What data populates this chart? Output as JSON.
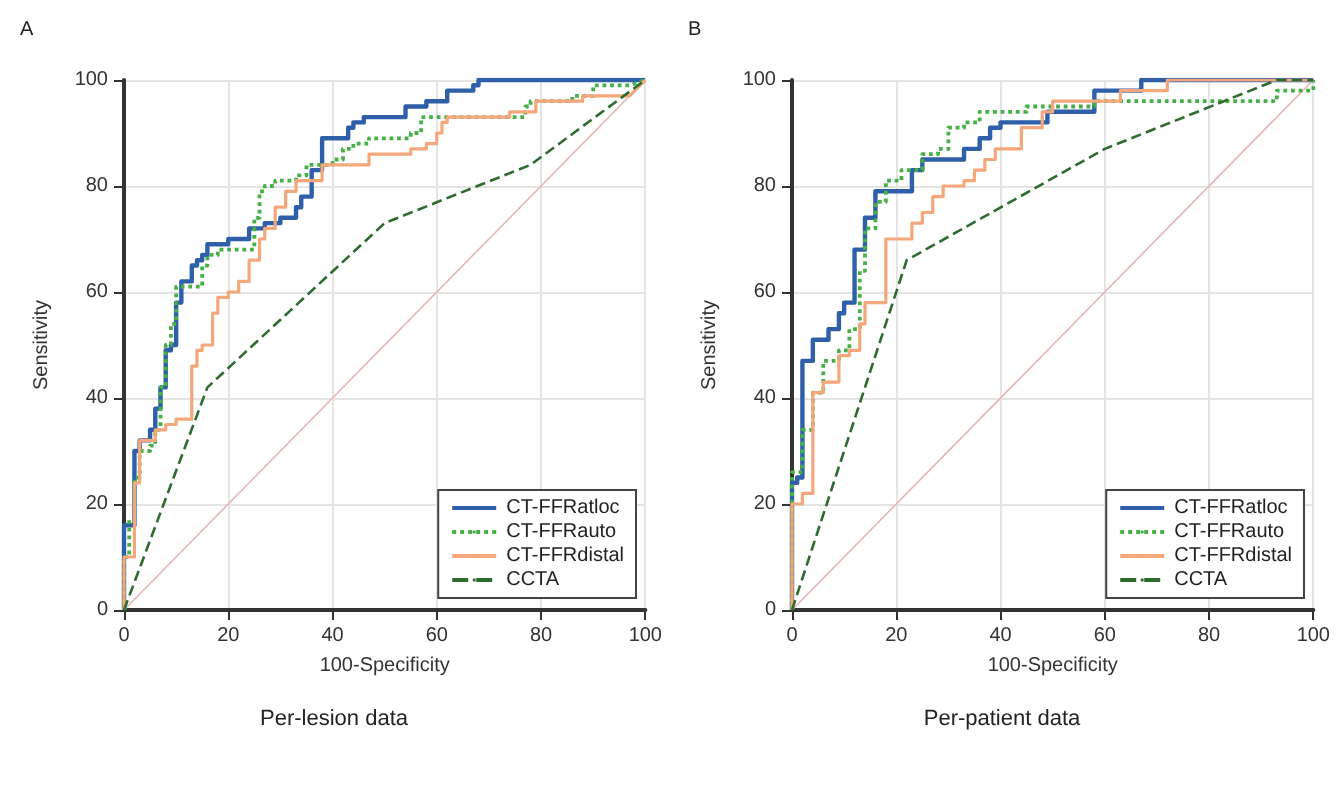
{
  "chart_data": [
    {
      "type": "line",
      "title": "A",
      "xlabel": "100-Specificity",
      "ylabel": "Sensitivity",
      "annotations": [
        "Per-lesion data"
      ],
      "xlim": [
        0,
        100
      ],
      "ylim": [
        0,
        100
      ],
      "xticks": [
        0,
        20,
        40,
        60,
        80,
        100
      ],
      "yticks": [
        0,
        20,
        40,
        60,
        80,
        100
      ],
      "grid": true,
      "legend": "bottom right",
      "marker": "none",
      "series": [
        {
          "name": "CT-FFRatloc",
          "color": "#2e5fa8",
          "line_style": "solid",
          "x": [
            0,
            0,
            2,
            2,
            3,
            3,
            5,
            5,
            6,
            6,
            7,
            7,
            8,
            8,
            9,
            9,
            10,
            10,
            11,
            11,
            13,
            13,
            14,
            14,
            15,
            15,
            16,
            16,
            20,
            20,
            24,
            24,
            27,
            27,
            30,
            30,
            33,
            33,
            34,
            34,
            36,
            36,
            38,
            38,
            43,
            43,
            44,
            44,
            46,
            46,
            54,
            54,
            58,
            58,
            62,
            62,
            67,
            67,
            68,
            68,
            100
          ],
          "values": [
            0,
            16,
            16,
            30,
            30,
            32,
            32,
            34,
            34,
            38,
            38,
            42,
            42,
            49,
            49,
            50,
            50,
            58,
            58,
            62,
            62,
            65,
            65,
            66,
            66,
            67,
            67,
            69,
            69,
            70,
            70,
            72,
            72,
            73,
            73,
            74,
            74,
            76,
            76,
            78,
            78,
            83,
            83,
            89,
            89,
            91,
            91,
            92,
            92,
            93,
            93,
            95,
            95,
            96,
            96,
            98,
            98,
            99,
            99,
            100,
            100
          ]
        },
        {
          "name": "CT-FFRauto",
          "color": "#45b045",
          "line_style": "dotted",
          "x": [
            0,
            0,
            1,
            1,
            2,
            2,
            3,
            3,
            5,
            5,
            6,
            6,
            7,
            7,
            8,
            8,
            9,
            9,
            10,
            10,
            15,
            15,
            16,
            16,
            18,
            18,
            25,
            25,
            26,
            26,
            27,
            27,
            29,
            29,
            33,
            33,
            35,
            35,
            40,
            40,
            42,
            42,
            44,
            44,
            47,
            47,
            55,
            55,
            57,
            57,
            77,
            77,
            78,
            78,
            86,
            86,
            90,
            90,
            97,
            100
          ],
          "values": [
            0,
            10,
            10,
            17,
            17,
            25,
            25,
            30,
            30,
            31,
            31,
            34,
            34,
            42,
            42,
            50,
            50,
            54,
            54,
            61,
            61,
            65,
            65,
            67,
            67,
            68,
            68,
            74,
            74,
            79,
            79,
            80,
            80,
            81,
            81,
            82,
            82,
            84,
            84,
            85,
            85,
            87,
            87,
            88,
            88,
            89,
            89,
            90,
            90,
            93,
            93,
            95,
            95,
            96,
            96,
            97,
            97,
            99,
            99,
            100
          ]
        },
        {
          "name": "CT-FFRdistal",
          "color": "#f4a77a",
          "line_style": "solid",
          "x": [
            0,
            0,
            2,
            2,
            3,
            3,
            6,
            6,
            8,
            8,
            10,
            10,
            13,
            13,
            14,
            14,
            15,
            15,
            17,
            17,
            18,
            18,
            20,
            20,
            22,
            22,
            24,
            24,
            26,
            26,
            27,
            27,
            29,
            29,
            31,
            31,
            33,
            33,
            38,
            38,
            47,
            47,
            55,
            55,
            58,
            58,
            60,
            60,
            61,
            61,
            62,
            62,
            74,
            74,
            79,
            79,
            88,
            88,
            97,
            100
          ],
          "values": [
            0,
            10,
            10,
            24,
            24,
            32,
            32,
            34,
            34,
            35,
            35,
            36,
            36,
            46,
            46,
            49,
            49,
            50,
            50,
            56,
            56,
            59,
            59,
            60,
            60,
            62,
            62,
            66,
            66,
            70,
            70,
            72,
            72,
            76,
            76,
            79,
            79,
            81,
            81,
            84,
            84,
            86,
            86,
            87,
            87,
            88,
            88,
            90,
            90,
            92,
            92,
            93,
            93,
            94,
            94,
            96,
            96,
            97,
            97,
            100
          ]
        },
        {
          "name": "CCTA",
          "color": "#2e6b2e",
          "line_style": "dashed",
          "x": [
            0,
            16,
            50,
            78,
            100
          ],
          "values": [
            0,
            42,
            73,
            84,
            100
          ]
        },
        {
          "color": "#e8b4b4",
          "line_style": "solid",
          "x": [
            0,
            100
          ],
          "values": [
            0,
            100
          ]
        }
      ]
    },
    {
      "type": "line",
      "title": "B",
      "xlabel": "100-Specificity",
      "ylabel": "Sensitivity",
      "annotations": [
        "Per-patient data"
      ],
      "xlim": [
        0,
        100
      ],
      "ylim": [
        0,
        100
      ],
      "xticks": [
        0,
        20,
        40,
        60,
        80,
        100
      ],
      "yticks": [
        0,
        20,
        40,
        60,
        80,
        100
      ],
      "grid": true,
      "legend": "bottom right",
      "marker": "none",
      "series": [
        {
          "name": "CT-FFRatloc",
          "color": "#2e5fa8",
          "line_style": "solid",
          "x": [
            0,
            0,
            1,
            1,
            2,
            2,
            4,
            4,
            7,
            7,
            9,
            9,
            10,
            10,
            12,
            12,
            14,
            14,
            16,
            16,
            23,
            23,
            25,
            25,
            33,
            33,
            36,
            36,
            38,
            38,
            40,
            40,
            49,
            49,
            58,
            58,
            67,
            67,
            100
          ],
          "values": [
            0,
            24,
            24,
            25,
            25,
            47,
            47,
            51,
            51,
            53,
            53,
            56,
            56,
            58,
            58,
            68,
            68,
            74,
            74,
            79,
            79,
            83,
            83,
            85,
            85,
            87,
            87,
            89,
            89,
            91,
            91,
            92,
            92,
            94,
            94,
            98,
            98,
            100,
            100
          ]
        },
        {
          "name": "CT-FFRauto",
          "color": "#45b045",
          "line_style": "dotted",
          "x": [
            0,
            0,
            2,
            2,
            4,
            4,
            6,
            6,
            9,
            9,
            11,
            11,
            13,
            13,
            14,
            14,
            16,
            16,
            18,
            18,
            21,
            21,
            25,
            25,
            28,
            28,
            30,
            30,
            33,
            33,
            36,
            36,
            45,
            45,
            58,
            58,
            93,
            93,
            100,
            100
          ],
          "values": [
            0,
            26,
            26,
            34,
            34,
            41,
            41,
            47,
            47,
            49,
            49,
            53,
            53,
            64,
            64,
            72,
            72,
            77,
            77,
            81,
            81,
            83,
            83,
            86,
            86,
            87,
            87,
            91,
            91,
            92,
            92,
            94,
            94,
            95,
            95,
            96,
            96,
            98,
            98,
            100
          ]
        },
        {
          "name": "CT-FFRdistal",
          "color": "#f4a77a",
          "line_style": "solid",
          "x": [
            0,
            0,
            2,
            2,
            4,
            4,
            6,
            6,
            9,
            9,
            11,
            11,
            13,
            13,
            14,
            14,
            18,
            18,
            23,
            23,
            25,
            25,
            27,
            27,
            29,
            29,
            33,
            33,
            35,
            35,
            37,
            37,
            39,
            39,
            44,
            44,
            48,
            48,
            50,
            50,
            63,
            63,
            72,
            72,
            100
          ],
          "values": [
            0,
            20,
            20,
            22,
            22,
            41,
            41,
            43,
            43,
            48,
            48,
            49,
            49,
            54,
            54,
            58,
            58,
            70,
            70,
            73,
            73,
            75,
            75,
            78,
            78,
            80,
            80,
            81,
            81,
            83,
            83,
            85,
            85,
            87,
            87,
            91,
            91,
            94,
            94,
            96,
            96,
            98,
            98,
            100,
            100
          ]
        },
        {
          "name": "CCTA",
          "color": "#2e6b2e",
          "line_style": "dashed",
          "x": [
            0,
            22,
            60,
            93,
            100
          ],
          "values": [
            0,
            66,
            87,
            100,
            100
          ]
        },
        {
          "color": "#e8b4b4",
          "line_style": "solid",
          "x": [
            0,
            100
          ],
          "values": [
            0,
            100
          ]
        }
      ]
    }
  ]
}
